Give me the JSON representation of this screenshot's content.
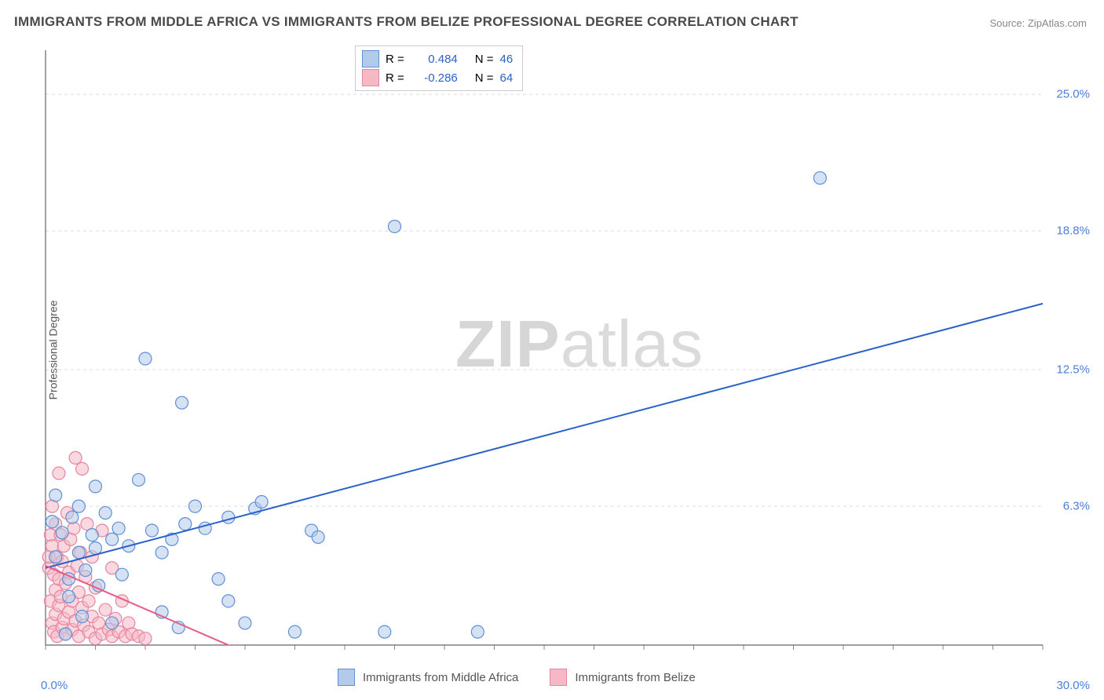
{
  "title": "IMMIGRANTS FROM MIDDLE AFRICA VS IMMIGRANTS FROM BELIZE PROFESSIONAL DEGREE CORRELATION CHART",
  "source": "Source: ZipAtlas.com",
  "ylabel": "Professional Degree",
  "watermark_bold": "ZIP",
  "watermark_rest": "atlas",
  "chart": {
    "type": "scatter",
    "background_color": "#ffffff",
    "axis_color": "#666666",
    "grid_color": "#dcdcdc",
    "grid_dash": "4 4",
    "tick_color": "#888888",
    "tick_label_color": "#4a7fd8",
    "x_domain": [
      0,
      30
    ],
    "y_domain": [
      0,
      27
    ],
    "y_ticks": [
      {
        "value": 6.3,
        "label": "6.3%"
      },
      {
        "value": 12.5,
        "label": "12.5%"
      },
      {
        "value": 18.8,
        "label": "18.8%"
      },
      {
        "value": 25.0,
        "label": "25.0%"
      }
    ],
    "x_min_label": "0.0%",
    "x_max_label": "30.0%",
    "x_minor_step": 1.5,
    "marker_radius": 8,
    "marker_stroke_width": 1.2,
    "line_width": 2
  },
  "series": {
    "blue": {
      "label": "Immigrants from Middle Africa",
      "fill": "#b3cbea",
      "stroke": "#5f8fd6",
      "fill_opacity": 0.55,
      "trend": {
        "x1": 0,
        "y1": 3.5,
        "x2": 30,
        "y2": 15.5,
        "color": "#2a62c9"
      },
      "stats": {
        "R": "0.484",
        "N": "46"
      },
      "points": [
        [
          0.2,
          5.6
        ],
        [
          0.3,
          4.0
        ],
        [
          0.3,
          6.8
        ],
        [
          0.5,
          5.1
        ],
        [
          0.6,
          0.5
        ],
        [
          0.7,
          3.0
        ],
        [
          0.7,
          2.2
        ],
        [
          0.8,
          5.8
        ],
        [
          1.0,
          4.2
        ],
        [
          1.0,
          6.3
        ],
        [
          1.1,
          1.3
        ],
        [
          1.2,
          3.4
        ],
        [
          1.4,
          5.0
        ],
        [
          1.5,
          7.2
        ],
        [
          1.5,
          4.4
        ],
        [
          1.6,
          2.7
        ],
        [
          1.8,
          6.0
        ],
        [
          2.0,
          4.8
        ],
        [
          2.0,
          1.0
        ],
        [
          2.2,
          5.3
        ],
        [
          2.3,
          3.2
        ],
        [
          2.5,
          4.5
        ],
        [
          2.8,
          7.5
        ],
        [
          3.0,
          13.0
        ],
        [
          3.2,
          5.2
        ],
        [
          3.5,
          4.2
        ],
        [
          3.5,
          1.5
        ],
        [
          3.8,
          4.8
        ],
        [
          4.1,
          11.0
        ],
        [
          4.2,
          5.5
        ],
        [
          4.5,
          6.3
        ],
        [
          4.8,
          5.3
        ],
        [
          5.5,
          2.0
        ],
        [
          5.5,
          5.8
        ],
        [
          6.0,
          1.0
        ],
        [
          6.3,
          6.2
        ],
        [
          6.5,
          6.5
        ],
        [
          7.5,
          0.6
        ],
        [
          8.0,
          5.2
        ],
        [
          8.2,
          4.9
        ],
        [
          10.5,
          19.0
        ],
        [
          10.2,
          0.6
        ],
        [
          13.0,
          0.6
        ],
        [
          23.3,
          21.2
        ],
        [
          4.0,
          0.8
        ],
        [
          5.2,
          3.0
        ]
      ]
    },
    "pink": {
      "label": "Immigrants from Belize",
      "fill": "#f5b8c4",
      "stroke": "#e585a0",
      "fill_opacity": 0.55,
      "trend": {
        "x1": 0,
        "y1": 3.6,
        "x2": 5.5,
        "y2": 0.0,
        "color": "#e85a88"
      },
      "stats": {
        "R": "-0.286",
        "N": "64"
      },
      "points": [
        [
          0.1,
          3.5
        ],
        [
          0.1,
          4.0
        ],
        [
          0.15,
          5.0
        ],
        [
          0.15,
          2.0
        ],
        [
          0.2,
          4.5
        ],
        [
          0.2,
          6.3
        ],
        [
          0.2,
          1.0
        ],
        [
          0.25,
          3.2
        ],
        [
          0.25,
          0.6
        ],
        [
          0.3,
          2.5
        ],
        [
          0.3,
          5.5
        ],
        [
          0.3,
          1.4
        ],
        [
          0.35,
          4.0
        ],
        [
          0.35,
          0.4
        ],
        [
          0.4,
          3.0
        ],
        [
          0.4,
          7.8
        ],
        [
          0.4,
          1.8
        ],
        [
          0.45,
          2.2
        ],
        [
          0.45,
          5.0
        ],
        [
          0.5,
          0.8
        ],
        [
          0.5,
          3.8
        ],
        [
          0.55,
          1.2
        ],
        [
          0.55,
          4.5
        ],
        [
          0.6,
          2.8
        ],
        [
          0.6,
          0.5
        ],
        [
          0.65,
          6.0
        ],
        [
          0.7,
          1.5
        ],
        [
          0.7,
          3.3
        ],
        [
          0.75,
          4.8
        ],
        [
          0.8,
          0.7
        ],
        [
          0.8,
          2.0
        ],
        [
          0.85,
          5.3
        ],
        [
          0.9,
          8.5
        ],
        [
          0.9,
          1.1
        ],
        [
          0.95,
          3.6
        ],
        [
          1.0,
          0.4
        ],
        [
          1.0,
          2.4
        ],
        [
          1.05,
          4.2
        ],
        [
          1.1,
          1.7
        ],
        [
          1.1,
          8.0
        ],
        [
          1.15,
          0.9
        ],
        [
          1.2,
          3.1
        ],
        [
          1.25,
          5.5
        ],
        [
          1.3,
          0.6
        ],
        [
          1.3,
          2.0
        ],
        [
          1.4,
          1.3
        ],
        [
          1.4,
          4.0
        ],
        [
          1.5,
          0.3
        ],
        [
          1.5,
          2.6
        ],
        [
          1.6,
          1.0
        ],
        [
          1.7,
          5.2
        ],
        [
          1.7,
          0.5
        ],
        [
          1.8,
          1.6
        ],
        [
          1.9,
          0.7
        ],
        [
          2.0,
          3.5
        ],
        [
          2.0,
          0.4
        ],
        [
          2.1,
          1.2
        ],
        [
          2.2,
          0.6
        ],
        [
          2.3,
          2.0
        ],
        [
          2.4,
          0.4
        ],
        [
          2.5,
          1.0
        ],
        [
          2.6,
          0.5
        ],
        [
          2.8,
          0.4
        ],
        [
          3.0,
          0.3
        ]
      ]
    }
  },
  "legend_top": {
    "r_label": "R =",
    "n_label": "N ="
  }
}
